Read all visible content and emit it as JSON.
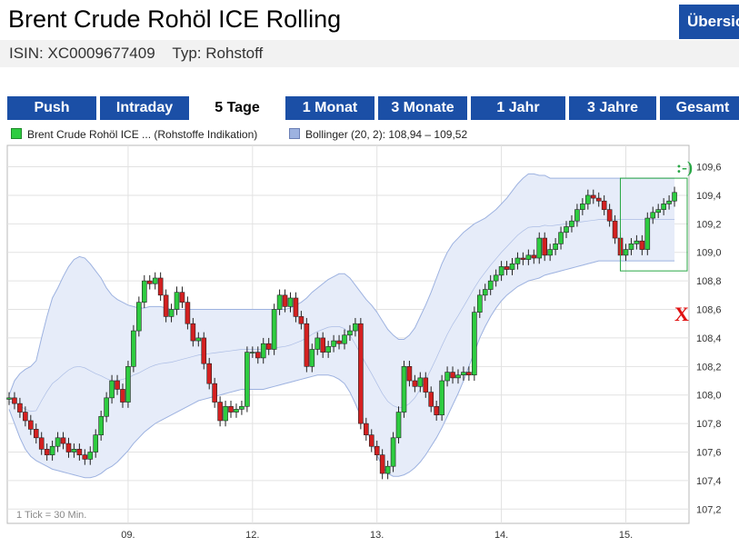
{
  "header": {
    "title": "Brent Crude Rohöl ICE Rolling",
    "overview_label": "Übersicht",
    "isin": "ISIN: XC0009677409",
    "typ": "Typ: Rohstoff"
  },
  "tabs": [
    {
      "label": "Push",
      "active": false
    },
    {
      "label": "Intraday",
      "active": false
    },
    {
      "label": "5 Tage",
      "active": true
    },
    {
      "label": "1 Monat",
      "active": false
    },
    {
      "label": "3 Monate",
      "active": false
    },
    {
      "label": "1 Jahr",
      "active": false
    },
    {
      "label": "3 Jahre",
      "active": false
    },
    {
      "label": "Gesamt",
      "active": false
    }
  ],
  "legend": {
    "series1": "Brent Crude Rohöl ICE ... (Rohstoffe Indikation)",
    "series2": "Bollinger (20, 2): 108,94 – 109,52"
  },
  "colors": {
    "tab_bg": "#1b4fa6",
    "candle_up": "#2ecc40",
    "candle_down": "#d42020",
    "band_fill": "#e6ecf9",
    "band_stroke": "#9db2e0",
    "annotation_green": "#28a745",
    "annotation_red": "#e01010"
  },
  "chart_data": {
    "type": "candlestick",
    "tick_note": "1 Tick = 30 Min.",
    "yticks": [
      "109,6",
      "109,4",
      "109,2",
      "109,0",
      "108,8",
      "108,6",
      "108,4",
      "108,2",
      "108,0",
      "107,8",
      "107,6",
      "107,4",
      "107,2"
    ],
    "ylim": [
      107.1,
      109.75
    ],
    "xlim": [
      0,
      124
    ],
    "xticks": [
      {
        "label": "09.",
        "x": 22
      },
      {
        "label": "12.",
        "x": 45
      },
      {
        "label": "13.",
        "x": 68
      },
      {
        "label": "14.",
        "x": 91
      },
      {
        "label": "15.",
        "x": 114
      }
    ],
    "close": [
      107.98,
      107.94,
      107.88,
      107.82,
      107.76,
      107.7,
      107.62,
      107.58,
      107.64,
      107.7,
      107.66,
      107.6,
      107.62,
      107.58,
      107.55,
      107.6,
      107.72,
      107.85,
      107.98,
      108.1,
      108.04,
      107.95,
      108.2,
      108.45,
      108.65,
      108.8,
      108.78,
      108.82,
      108.7,
      108.55,
      108.6,
      108.72,
      108.65,
      108.5,
      108.38,
      108.4,
      108.22,
      108.08,
      107.95,
      107.82,
      107.92,
      107.88,
      107.9,
      107.92,
      108.3,
      108.3,
      108.26,
      108.36,
      108.32,
      108.6,
      108.7,
      108.62,
      108.68,
      108.55,
      108.5,
      108.2,
      108.32,
      108.4,
      108.3,
      108.34,
      108.38,
      108.36,
      108.42,
      108.45,
      108.5,
      107.8,
      107.72,
      107.64,
      107.58,
      107.45,
      107.5,
      107.7,
      107.88,
      108.2,
      108.1,
      108.06,
      108.12,
      108.02,
      107.92,
      107.86,
      108.1,
      108.16,
      108.12,
      108.14,
      108.16,
      108.14,
      108.58,
      108.7,
      108.74,
      108.8,
      108.84,
      108.9,
      108.88,
      108.92,
      108.96,
      108.95,
      108.98,
      108.96,
      109.1,
      108.98,
      109.02,
      109.06,
      109.14,
      109.18,
      109.22,
      109.3,
      109.34,
      109.4,
      109.38,
      109.36,
      109.3,
      109.22,
      109.1,
      108.98,
      109.02,
      109.06,
      109.08,
      109.02,
      109.24,
      109.28,
      109.3,
      109.34,
      109.36,
      109.42
    ],
    "bollinger_upper": [
      108.0,
      108.1,
      108.15,
      108.18,
      108.2,
      108.24,
      108.4,
      108.55,
      108.68,
      108.75,
      108.83,
      108.9,
      108.95,
      108.97,
      108.96,
      108.92,
      108.87,
      108.82,
      108.75,
      108.7,
      108.67,
      108.65,
      108.63,
      108.62,
      108.61,
      108.61,
      108.62,
      108.62,
      108.62,
      108.61,
      108.6,
      108.6,
      108.6,
      108.6,
      108.6,
      108.6,
      108.6,
      108.6,
      108.6,
      108.6,
      108.6,
      108.6,
      108.6,
      108.6,
      108.6,
      108.6,
      108.6,
      108.6,
      108.6,
      108.6,
      108.6,
      108.6,
      108.61,
      108.63,
      108.65,
      108.68,
      108.72,
      108.75,
      108.78,
      108.81,
      108.83,
      108.85,
      108.85,
      108.82,
      108.77,
      108.72,
      108.67,
      108.63,
      108.58,
      108.52,
      108.46,
      108.42,
      108.39,
      108.39,
      108.42,
      108.47,
      108.55,
      108.63,
      108.72,
      108.82,
      108.92,
      109.0,
      109.06,
      109.1,
      109.14,
      109.17,
      109.2,
      109.22,
      109.24,
      109.27,
      109.3,
      109.34,
      109.38,
      109.43,
      109.48,
      109.52,
      109.55,
      109.55,
      109.54,
      109.54,
      109.52,
      109.52,
      109.52,
      109.52,
      109.52,
      109.52,
      109.52,
      109.52,
      109.52,
      109.52,
      109.52,
      109.52,
      109.52,
      109.52,
      109.52,
      109.52,
      109.52,
      109.52,
      109.52,
      109.52,
      109.52,
      109.52,
      109.52,
      109.52
    ],
    "bollinger_lower": [
      107.9,
      107.8,
      107.7,
      107.62,
      107.57,
      107.54,
      107.52,
      107.5,
      107.48,
      107.47,
      107.46,
      107.45,
      107.44,
      107.43,
      107.42,
      107.42,
      107.43,
      107.45,
      107.48,
      107.5,
      107.53,
      107.57,
      107.61,
      107.66,
      107.7,
      107.74,
      107.77,
      107.8,
      107.82,
      107.84,
      107.86,
      107.88,
      107.9,
      107.92,
      107.94,
      107.96,
      107.97,
      107.98,
      107.99,
      108.0,
      108.01,
      108.02,
      108.03,
      108.04,
      108.04,
      108.04,
      108.04,
      108.04,
      108.05,
      108.06,
      108.07,
      108.08,
      108.09,
      108.1,
      108.11,
      108.12,
      108.13,
      108.14,
      108.14,
      108.14,
      108.13,
      108.11,
      108.08,
      108.02,
      107.94,
      107.85,
      107.76,
      107.67,
      107.58,
      107.5,
      107.45,
      107.43,
      107.43,
      107.44,
      107.46,
      107.49,
      107.53,
      107.58,
      107.64,
      107.7,
      107.77,
      107.85,
      107.93,
      108.01,
      108.1,
      108.2,
      108.3,
      108.4,
      108.48,
      108.55,
      108.61,
      108.66,
      108.7,
      108.73,
      108.76,
      108.78,
      108.8,
      108.81,
      108.82,
      108.84,
      108.85,
      108.86,
      108.87,
      108.88,
      108.89,
      108.9,
      108.91,
      108.92,
      108.93,
      108.94,
      108.94,
      108.94,
      108.94,
      108.94,
      108.94,
      108.94,
      108.94,
      108.94,
      108.94,
      108.94,
      108.94,
      108.94,
      108.94,
      108.94
    ],
    "annotations": {
      "smiley": ":-)",
      "cross": "X"
    }
  }
}
